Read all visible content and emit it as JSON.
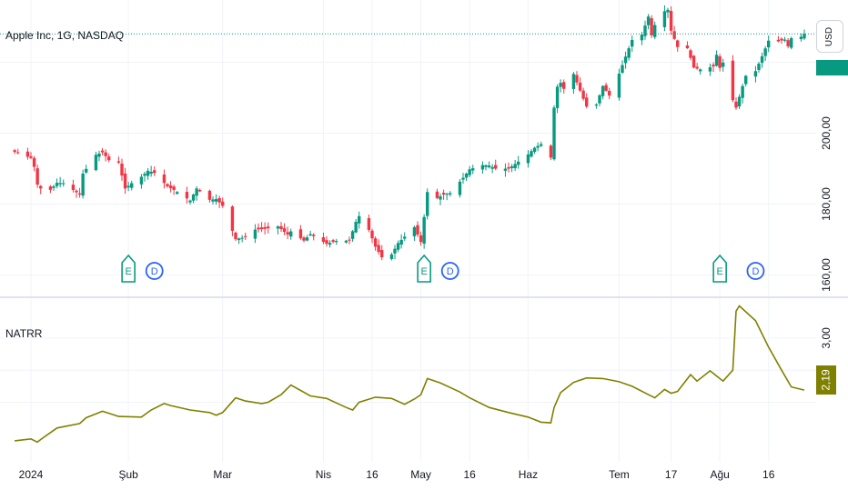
{
  "header": {
    "symbol_title": "Apple Inc, 1G, NASDAQ"
  },
  "currency_button": {
    "label": "USD"
  },
  "indicator": {
    "title": "NATRR",
    "last_value": "2,19"
  },
  "colors": {
    "up": "#089981",
    "down": "#f23645",
    "indicator": "#808000",
    "event_earnings": "#089981",
    "event_dividend": "#2962ff"
  },
  "chart_data": [
    {
      "type": "candlestick",
      "title": "Apple Inc, 1G, NASDAQ",
      "ylabel": "USD",
      "ylim": [
        155,
        235
      ],
      "y_ticks": [
        "200,00",
        "180,00",
        "160,00"
      ],
      "y_tick_values": [
        200,
        180,
        160
      ],
      "x_ticks": [
        "2024",
        "Şub",
        "Mar",
        "Nis",
        "16",
        "May",
        "16",
        "Haz",
        "Tem",
        "17",
        "Ağu",
        "16"
      ],
      "x_tick_dates": [
        "2024-01-02",
        "2024-02-01",
        "2024-03-01",
        "2024-04-01",
        "2024-04-16",
        "2024-05-01",
        "2024-05-16",
        "2024-06-03",
        "2024-07-01",
        "2024-07-17",
        "2024-08-01",
        "2024-08-16"
      ],
      "close_anchors": [
        [
          "2023-12-28",
          194.7
        ],
        [
          "2024-01-02",
          193.0
        ],
        [
          "2024-01-03",
          190.5
        ],
        [
          "2024-01-04",
          185.5
        ],
        [
          "2024-01-05",
          184.4
        ],
        [
          "2024-01-08",
          184.0
        ],
        [
          "2024-01-10",
          186.0
        ],
        [
          "2024-01-12",
          185.9
        ],
        [
          "2024-01-17",
          182.7
        ],
        [
          "2024-01-18",
          188.6
        ],
        [
          "2024-01-22",
          193.9
        ],
        [
          "2024-01-24",
          194.6
        ],
        [
          "2024-01-26",
          192.4
        ],
        [
          "2024-01-29",
          191.7
        ],
        [
          "2024-01-31",
          184.4
        ],
        [
          "2024-02-02",
          185.9
        ],
        [
          "2024-02-05",
          187.7
        ],
        [
          "2024-02-07",
          189.4
        ],
        [
          "2024-02-09",
          188.8
        ],
        [
          "2024-02-13",
          185.0
        ],
        [
          "2024-02-15",
          184.0
        ],
        [
          "2024-02-20",
          181.0
        ],
        [
          "2024-02-22",
          184.4
        ],
        [
          "2024-02-26",
          181.2
        ],
        [
          "2024-02-28",
          181.4
        ],
        [
          "2024-03-01",
          179.5
        ],
        [
          "2024-03-05",
          170.1
        ],
        [
          "2024-03-08",
          170.7
        ],
        [
          "2024-03-11",
          172.8
        ],
        [
          "2024-03-14",
          173.0
        ],
        [
          "2024-03-18",
          173.7
        ],
        [
          "2024-03-21",
          171.4
        ],
        [
          "2024-03-22",
          172.3
        ],
        [
          "2024-03-26",
          169.7
        ],
        [
          "2024-03-28",
          171.5
        ],
        [
          "2024-04-02",
          168.8
        ],
        [
          "2024-04-05",
          169.6
        ],
        [
          "2024-04-09",
          169.7
        ],
        [
          "2024-04-11",
          175.0
        ],
        [
          "2024-04-12",
          176.6
        ],
        [
          "2024-04-15",
          172.7
        ],
        [
          "2024-04-17",
          168.0
        ],
        [
          "2024-04-19",
          165.0
        ],
        [
          "2024-04-22",
          165.8
        ],
        [
          "2024-04-24",
          169.0
        ],
        [
          "2024-04-29",
          173.5
        ],
        [
          "2024-05-01",
          169.3
        ],
        [
          "2024-05-03",
          183.4
        ],
        [
          "2024-05-06",
          181.7
        ],
        [
          "2024-05-08",
          182.7
        ],
        [
          "2024-05-10",
          183.1
        ],
        [
          "2024-05-14",
          187.4
        ],
        [
          "2024-05-16",
          189.8
        ],
        [
          "2024-05-20",
          191.0
        ],
        [
          "2024-05-22",
          190.9
        ],
        [
          "2024-05-24",
          190.0
        ],
        [
          "2024-05-28",
          189.99
        ],
        [
          "2024-05-30",
          191.3
        ],
        [
          "2024-06-03",
          194.0
        ],
        [
          "2024-06-05",
          195.9
        ],
        [
          "2024-06-07",
          196.9
        ],
        [
          "2024-06-10",
          193.1
        ],
        [
          "2024-06-11",
          207.2
        ],
        [
          "2024-06-12",
          213.1
        ],
        [
          "2024-06-13",
          214.2
        ],
        [
          "2024-06-14",
          212.5
        ],
        [
          "2024-06-17",
          216.7
        ],
        [
          "2024-06-18",
          214.3
        ],
        [
          "2024-06-20",
          209.7
        ],
        [
          "2024-06-21",
          207.5
        ],
        [
          "2024-06-24",
          208.1
        ],
        [
          "2024-06-26",
          213.3
        ],
        [
          "2024-06-28",
          210.6
        ],
        [
          "2024-07-01",
          216.8
        ],
        [
          "2024-07-03",
          221.6
        ],
        [
          "2024-07-05",
          226.3
        ],
        [
          "2024-07-08",
          227.8
        ],
        [
          "2024-07-10",
          232.9
        ],
        [
          "2024-07-11",
          227.6
        ],
        [
          "2024-07-12",
          230.5
        ],
        [
          "2024-07-15",
          234.4
        ],
        [
          "2024-07-16",
          234.8
        ],
        [
          "2024-07-17",
          228.9
        ],
        [
          "2024-07-19",
          224.3
        ],
        [
          "2024-07-22",
          223.96
        ],
        [
          "2024-07-24",
          218.5
        ],
        [
          "2024-07-26",
          217.96
        ],
        [
          "2024-07-30",
          218.8
        ],
        [
          "2024-07-31",
          222.1
        ],
        [
          "2024-08-01",
          218.4
        ],
        [
          "2024-08-02",
          219.9
        ],
        [
          "2024-08-05",
          209.3
        ],
        [
          "2024-08-06",
          207.2
        ],
        [
          "2024-08-08",
          213.3
        ],
        [
          "2024-08-09",
          216.2
        ],
        [
          "2024-08-12",
          217.5
        ],
        [
          "2024-08-14",
          221.7
        ],
        [
          "2024-08-16",
          226.1
        ],
        [
          "2024-08-19",
          225.9
        ],
        [
          "2024-08-21",
          226.4
        ],
        [
          "2024-08-22",
          224.5
        ],
        [
          "2024-08-23",
          226.8
        ],
        [
          "2024-08-26",
          227.2
        ],
        [
          "2024-08-27",
          228.0
        ]
      ],
      "events": [
        {
          "label": "E",
          "kind": "earnings",
          "date": "2024-02-01"
        },
        {
          "label": "D",
          "kind": "dividend",
          "date": "2024-02-09"
        },
        {
          "label": "E",
          "kind": "earnings",
          "date": "2024-05-02"
        },
        {
          "label": "D",
          "kind": "dividend",
          "date": "2024-05-10"
        },
        {
          "label": "E",
          "kind": "earnings",
          "date": "2024-08-01"
        },
        {
          "label": "D",
          "kind": "dividend",
          "date": "2024-08-12"
        }
      ]
    },
    {
      "type": "line",
      "series": [
        {
          "name": "NATRR",
          "color": "#808000"
        }
      ],
      "ylim": [
        1.3,
        3.55
      ],
      "y_ticks": [
        "3,00"
      ],
      "y_tick_values": [
        3.0
      ],
      "points": [
        [
          "2023-12-28",
          1.4
        ],
        [
          "2024-01-02",
          1.43
        ],
        [
          "2024-01-04",
          1.38
        ],
        [
          "2024-01-05",
          1.42
        ],
        [
          "2024-01-10",
          1.6
        ],
        [
          "2024-01-17",
          1.67
        ],
        [
          "2024-01-19",
          1.76
        ],
        [
          "2024-01-22",
          1.82
        ],
        [
          "2024-01-24",
          1.86
        ],
        [
          "2024-01-29",
          1.78
        ],
        [
          "2024-02-05",
          1.77
        ],
        [
          "2024-02-08",
          1.88
        ],
        [
          "2024-02-12",
          1.98
        ],
        [
          "2024-02-14",
          1.95
        ],
        [
          "2024-02-20",
          1.88
        ],
        [
          "2024-02-26",
          1.84
        ],
        [
          "2024-02-28",
          1.8
        ],
        [
          "2024-03-01",
          1.84
        ],
        [
          "2024-03-05",
          2.07
        ],
        [
          "2024-03-08",
          2.02
        ],
        [
          "2024-03-13",
          1.98
        ],
        [
          "2024-03-15",
          2.0
        ],
        [
          "2024-03-19",
          2.12
        ],
        [
          "2024-03-22",
          2.27
        ],
        [
          "2024-03-28",
          2.1
        ],
        [
          "2024-04-02",
          2.06
        ],
        [
          "2024-04-08",
          1.92
        ],
        [
          "2024-04-10",
          1.88
        ],
        [
          "2024-04-12",
          2.0
        ],
        [
          "2024-04-17",
          2.08
        ],
        [
          "2024-04-22",
          2.06
        ],
        [
          "2024-04-26",
          1.97
        ],
        [
          "2024-04-29",
          2.05
        ],
        [
          "2024-05-01",
          2.12
        ],
        [
          "2024-05-03",
          2.37
        ],
        [
          "2024-05-07",
          2.3
        ],
        [
          "2024-05-13",
          2.16
        ],
        [
          "2024-05-16",
          2.07
        ],
        [
          "2024-05-22",
          1.92
        ],
        [
          "2024-05-28",
          1.84
        ],
        [
          "2024-06-03",
          1.77
        ],
        [
          "2024-06-07",
          1.69
        ],
        [
          "2024-06-10",
          1.68
        ],
        [
          "2024-06-11",
          1.92
        ],
        [
          "2024-06-13",
          2.15
        ],
        [
          "2024-06-17",
          2.31
        ],
        [
          "2024-06-21",
          2.38
        ],
        [
          "2024-06-26",
          2.37
        ],
        [
          "2024-07-01",
          2.32
        ],
        [
          "2024-07-05",
          2.25
        ],
        [
          "2024-07-10",
          2.12
        ],
        [
          "2024-07-12",
          2.07
        ],
        [
          "2024-07-15",
          2.2
        ],
        [
          "2024-07-17",
          2.14
        ],
        [
          "2024-07-19",
          2.17
        ],
        [
          "2024-07-23",
          2.43
        ],
        [
          "2024-07-25",
          2.33
        ],
        [
          "2024-07-29",
          2.49
        ],
        [
          "2024-07-31",
          2.41
        ],
        [
          "2024-08-02",
          2.33
        ],
        [
          "2024-08-05",
          2.5
        ],
        [
          "2024-08-06",
          3.42
        ],
        [
          "2024-08-07",
          3.5
        ],
        [
          "2024-08-12",
          3.27
        ],
        [
          "2024-08-16",
          2.86
        ],
        [
          "2024-08-20",
          2.5
        ],
        [
          "2024-08-23",
          2.24
        ],
        [
          "2024-08-27",
          2.19
        ]
      ]
    }
  ]
}
